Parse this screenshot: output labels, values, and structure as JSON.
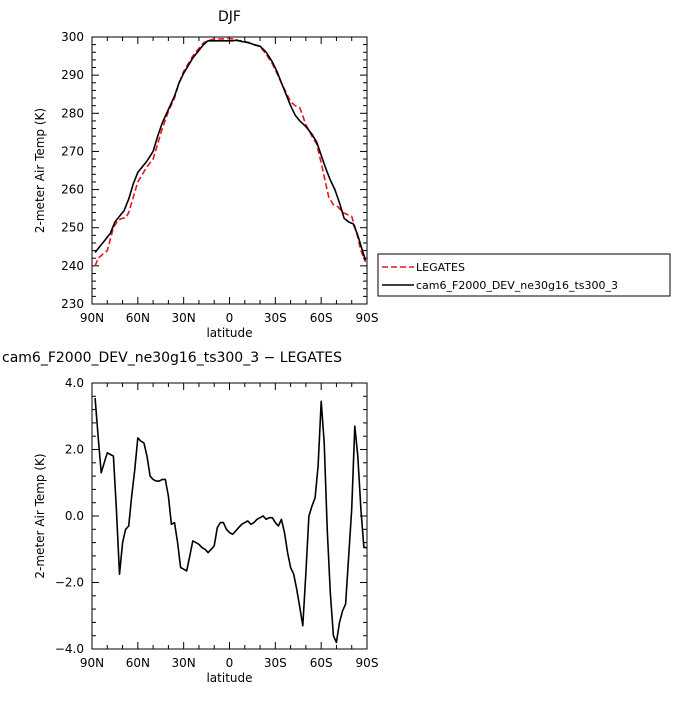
{
  "chart_data": [
    {
      "type": "line",
      "title": "DJF",
      "xlabel": "latitude",
      "ylabel": "2-meter Air Temp (K)",
      "xlim": [
        90,
        -90
      ],
      "ylim": [
        230,
        300
      ],
      "x_tick_values": [
        90,
        60,
        30,
        0,
        -30,
        -60,
        -90
      ],
      "x_tick_labels": [
        "90N",
        "60N",
        "30N",
        "0",
        "30S",
        "60S",
        "90S"
      ],
      "y_ticks": [
        230,
        240,
        250,
        260,
        270,
        280,
        290,
        300
      ],
      "y_tick_labels": [
        "230",
        "240",
        "250",
        "260",
        "270",
        "280",
        "290",
        "300"
      ],
      "legend_position": "right",
      "series": [
        {
          "name": "LEGATES",
          "color": "#e8141b",
          "dash": "dashed",
          "x": [
            88,
            86,
            83,
            80,
            78,
            76,
            73,
            70,
            68,
            66,
            63,
            60,
            57,
            54,
            50,
            47,
            44,
            40,
            36,
            33,
            30,
            27,
            24,
            20,
            17,
            14,
            10,
            7,
            4,
            1,
            -2,
            -5,
            -8,
            -12,
            -16,
            -20,
            -24,
            -28,
            -31,
            -34,
            -37,
            -40,
            -43,
            -46,
            -50,
            -54,
            -57,
            -60,
            -63,
            -65,
            -68,
            -71,
            -74,
            -77,
            -80,
            -83,
            -86,
            -89
          ],
          "y": [
            240.0,
            242.0,
            243.0,
            244.0,
            247.0,
            250.0,
            252.0,
            252.5,
            252.5,
            254.0,
            258.0,
            262.0,
            264.0,
            266.0,
            268.0,
            272.0,
            276.0,
            280.5,
            284.0,
            288.0,
            291.0,
            293.0,
            295.0,
            297.0,
            298.5,
            299.0,
            299.5,
            299.5,
            299.5,
            299.6,
            299.5,
            299.0,
            299.0,
            298.5,
            298.0,
            297.5,
            295.5,
            293.0,
            290.5,
            288.0,
            285.5,
            283.0,
            282.0,
            281.5,
            277.0,
            274.0,
            272.0,
            267.0,
            261.5,
            258.0,
            256.0,
            255.5,
            254.0,
            253.5,
            253.0,
            249.0,
            244.0,
            241.0
          ]
        },
        {
          "name": "cam6_F2000_DEV_ne30g16_ts300_3",
          "color": "#000000",
          "dash": "solid",
          "x": [
            88,
            85,
            82,
            78,
            75,
            72,
            69,
            66,
            63,
            60,
            57,
            54,
            50,
            47,
            44,
            40,
            36,
            33,
            30,
            27,
            24,
            20,
            17,
            14,
            10,
            7,
            4,
            1,
            -2,
            -5,
            -8,
            -12,
            -16,
            -20,
            -24,
            -28,
            -31,
            -34,
            -37,
            -40,
            -43,
            -46,
            -50,
            -54,
            -57,
            -60,
            -63,
            -66,
            -69,
            -72,
            -75,
            -78,
            -81,
            -84,
            -87,
            -89
          ],
          "y": [
            243.5,
            245.0,
            246.5,
            248.5,
            251.5,
            253.0,
            254.5,
            257.5,
            261.5,
            264.5,
            266.0,
            267.5,
            270.0,
            274.0,
            277.5,
            281.0,
            284.5,
            288.0,
            290.5,
            292.5,
            294.5,
            296.5,
            298.0,
            299.0,
            299.0,
            299.0,
            299.0,
            299.0,
            299.0,
            299.2,
            298.8,
            298.6,
            298.0,
            297.6,
            296.0,
            293.5,
            291.0,
            288.0,
            285.0,
            282.0,
            279.5,
            278.0,
            276.5,
            274.5,
            272.5,
            269.0,
            265.5,
            262.5,
            260.0,
            256.5,
            252.5,
            251.5,
            251.0,
            248.0,
            244.0,
            241.5
          ]
        }
      ]
    },
    {
      "type": "line",
      "title": "cam6_F2000_DEV_ne30g16_ts300_3 − LEGATES",
      "xlabel": "latitude",
      "ylabel": "2-meter Air Temp (K)",
      "xlim": [
        90,
        -90
      ],
      "ylim": [
        -4.0,
        4.0
      ],
      "x_tick_values": [
        90,
        60,
        30,
        0,
        -30,
        -60,
        -90
      ],
      "x_tick_labels": [
        "90N",
        "60N",
        "30N",
        "0",
        "30S",
        "60S",
        "90S"
      ],
      "y_ticks": [
        -4.0,
        -2.0,
        0.0,
        2.0,
        4.0
      ],
      "y_tick_labels": [
        "−4.0",
        "−2.0",
        "0.0",
        "2.0",
        "4.0"
      ],
      "series": [
        {
          "color": "#000000",
          "dash": "solid",
          "x": [
            88,
            86,
            84,
            82,
            80,
            78,
            76,
            74,
            72,
            70,
            68,
            66,
            64,
            62,
            60,
            58,
            56,
            54,
            52,
            50,
            48,
            46,
            44,
            42,
            40,
            38,
            36,
            34,
            32,
            30,
            28,
            26,
            24,
            22,
            20,
            18,
            16,
            14,
            12,
            10,
            8,
            6,
            4,
            2,
            0,
            -2,
            -4,
            -6,
            -8,
            -10,
            -12,
            -14,
            -16,
            -18,
            -20,
            -22,
            -24,
            -26,
            -28,
            -30,
            -32,
            -34,
            -36,
            -38,
            -40,
            -42,
            -44,
            -46,
            -48,
            -50,
            -52,
            -54,
            -56,
            -58,
            -60,
            -62,
            -64,
            -66,
            -68,
            -70,
            -72,
            -74,
            -76,
            -78,
            -80,
            -82,
            -84,
            -86,
            -88,
            -90
          ],
          "y": [
            3.55,
            2.4,
            1.3,
            1.6,
            1.9,
            1.85,
            1.8,
            0.2,
            -1.75,
            -0.8,
            -0.4,
            -0.3,
            0.6,
            1.4,
            2.35,
            2.25,
            2.2,
            1.8,
            1.2,
            1.1,
            1.05,
            1.05,
            1.1,
            1.1,
            0.6,
            -0.25,
            -0.2,
            -0.8,
            -1.55,
            -1.6,
            -1.65,
            -1.2,
            -0.75,
            -0.8,
            -0.85,
            -0.95,
            -1.0,
            -1.1,
            -1.0,
            -0.9,
            -0.35,
            -0.2,
            -0.2,
            -0.4,
            -0.5,
            -0.55,
            -0.45,
            -0.35,
            -0.25,
            -0.2,
            -0.15,
            -0.25,
            -0.2,
            -0.1,
            -0.05,
            0.0,
            -0.1,
            -0.05,
            -0.05,
            -0.2,
            -0.3,
            -0.1,
            -0.5,
            -1.1,
            -1.55,
            -1.75,
            -2.2,
            -2.75,
            -3.3,
            -1.7,
            0.0,
            0.3,
            0.55,
            1.5,
            3.45,
            2.2,
            -0.45,
            -2.3,
            -3.6,
            -3.8,
            -3.2,
            -2.85,
            -2.65,
            -1.2,
            0.2,
            2.7,
            1.8,
            0.2,
            -0.95,
            -0.95
          ]
        }
      ]
    }
  ]
}
